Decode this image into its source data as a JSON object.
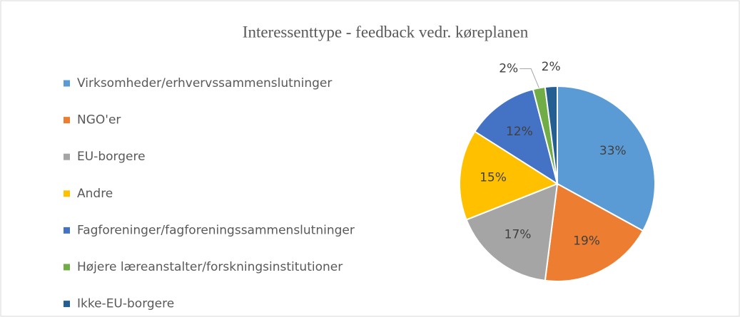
{
  "chart_data": {
    "type": "pie",
    "title": "Interessenttype - feedback vedr. køreplanen",
    "categories": [
      "Virksomheder/erhvervssammenslutninger",
      "NGO'er",
      "EU-borgere",
      "Andre",
      "Fagforeninger/fagforeningssammenslutninger",
      "Højere læreanstalter/forskningsinstitutioner",
      "Ikke-EU-borgere"
    ],
    "values": [
      33,
      19,
      17,
      15,
      12,
      2,
      2
    ],
    "value_labels": [
      "33%",
      "19%",
      "17%",
      "15%",
      "12%",
      "2%",
      "2%"
    ],
    "colors": [
      "#5b9bd5",
      "#ed7d31",
      "#a5a5a5",
      "#ffc000",
      "#4472c4",
      "#70ad47",
      "#255e91"
    ],
    "legend": "left"
  }
}
